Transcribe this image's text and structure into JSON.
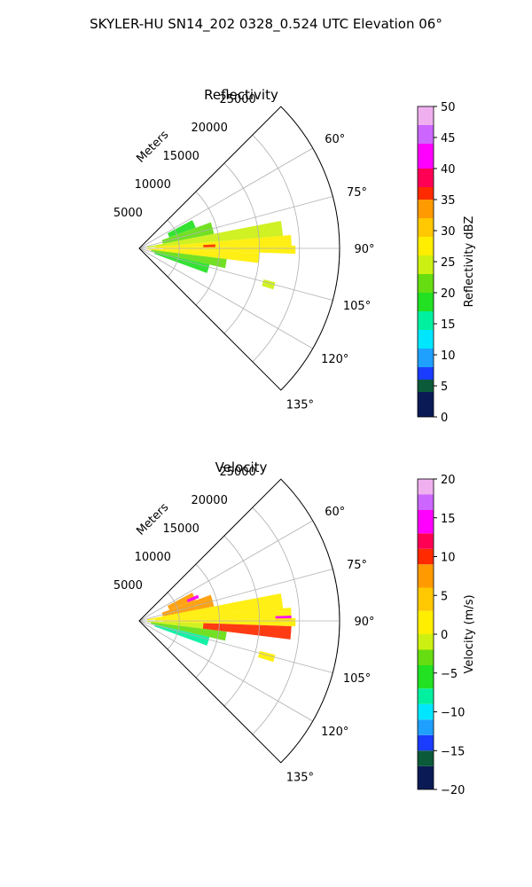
{
  "figure": {
    "title": "SKYLER-HU  SN14_202  0328_0.524 UTC Elevation 06°"
  },
  "chart_data": [
    {
      "type": "heatmap",
      "projection": "polar-sector",
      "title": "Reflectivity",
      "radial_axis_label": "Meters",
      "radial_range": [
        0,
        25000
      ],
      "radial_ticks": [
        "5000",
        "10000",
        "15000",
        "20000",
        "25000"
      ],
      "radial_tick_values": [
        5000,
        10000,
        15000,
        20000,
        25000
      ],
      "azimuth_range_deg": [
        45,
        135
      ],
      "azimuth_ticks": [
        "60°",
        "75°",
        "90°",
        "105°",
        "120°",
        "135°"
      ],
      "azimuth_tick_values": [
        60,
        75,
        90,
        105,
        120,
        135
      ],
      "grid": true,
      "colorbar": {
        "label": "Reflectivity dBZ",
        "range": [
          0,
          50
        ],
        "ticks": [
          "0",
          "5",
          "10",
          "15",
          "20",
          "25",
          "30",
          "35",
          "40",
          "45",
          "50"
        ],
        "tick_values": [
          0,
          5,
          10,
          15,
          20,
          25,
          30,
          35,
          40,
          45,
          50
        ],
        "colors": [
          [
            0,
            "#0a1a55"
          ],
          [
            4,
            "#0b5a3a"
          ],
          [
            6,
            "#1a3cff"
          ],
          [
            8,
            "#1fa0ff"
          ],
          [
            11,
            "#00e6ff"
          ],
          [
            14,
            "#00f0a0"
          ],
          [
            17,
            "#22e022"
          ],
          [
            20,
            "#66dd11"
          ],
          [
            23,
            "#ccf011"
          ],
          [
            26,
            "#ffee00"
          ],
          [
            29,
            "#ffc800"
          ],
          [
            32,
            "#ff9a00"
          ],
          [
            35,
            "#ff2a00"
          ],
          [
            37,
            "#ff0055"
          ],
          [
            40,
            "#ff00ff"
          ],
          [
            44,
            "#cc66ff"
          ],
          [
            47,
            "#f0b0f0"
          ],
          [
            50,
            "#fff0ff"
          ]
        ]
      },
      "echo_cells": [
        {
          "az": [
            62,
            70
          ],
          "range": [
            4000,
            7500
          ],
          "value": 18
        },
        {
          "az": [
            70,
            79
          ],
          "range": [
            3000,
            9500
          ],
          "value": 20
        },
        {
          "az": [
            79,
            85
          ],
          "range": [
            1000,
            18000
          ],
          "value": 24
        },
        {
          "az": [
            85,
            89
          ],
          "range": [
            2000,
            19000
          ],
          "value": 28
        },
        {
          "az": [
            89,
            92
          ],
          "range": [
            3000,
            19500
          ],
          "value": 27
        },
        {
          "az": [
            92,
            97
          ],
          "range": [
            1000,
            15000
          ],
          "value": 26
        },
        {
          "az": [
            97,
            103
          ],
          "range": [
            1500,
            11000
          ],
          "value": 21
        },
        {
          "az": [
            103,
            110
          ],
          "range": [
            2000,
            9000
          ],
          "value": 17
        },
        {
          "az": [
            87,
            89
          ],
          "range": [
            8000,
            9500
          ],
          "value": 36
        },
        {
          "az": [
            104,
            107
          ],
          "range": [
            16000,
            17500
          ],
          "value": 24
        }
      ]
    },
    {
      "type": "heatmap",
      "projection": "polar-sector",
      "title": "Velocity",
      "radial_axis_label": "Meters",
      "radial_range": [
        0,
        25000
      ],
      "radial_ticks": [
        "5000",
        "10000",
        "15000",
        "20000",
        "25000"
      ],
      "radial_tick_values": [
        5000,
        10000,
        15000,
        20000,
        25000
      ],
      "azimuth_range_deg": [
        45,
        135
      ],
      "azimuth_ticks": [
        "60°",
        "75°",
        "90°",
        "105°",
        "120°",
        "135°"
      ],
      "azimuth_tick_values": [
        60,
        75,
        90,
        105,
        120,
        135
      ],
      "grid": true,
      "colorbar": {
        "label": "Velocity (m/s)",
        "range": [
          -20,
          20
        ],
        "ticks": [
          "−20",
          "−15",
          "−10",
          "−5",
          "0",
          "5",
          "10",
          "15",
          "20"
        ],
        "tick_values": [
          -20,
          -15,
          -10,
          -5,
          0,
          5,
          10,
          15,
          20
        ],
        "colors": [
          [
            -20,
            "#0a1a55"
          ],
          [
            -17,
            "#0b5a3a"
          ],
          [
            -15,
            "#1a3cff"
          ],
          [
            -13,
            "#1fa0ff"
          ],
          [
            -11,
            "#00e6ff"
          ],
          [
            -9,
            "#00f0a0"
          ],
          [
            -7,
            "#22e022"
          ],
          [
            -4,
            "#66dd11"
          ],
          [
            -2,
            "#ccf011"
          ],
          [
            0,
            "#ffee00"
          ],
          [
            3,
            "#ffc800"
          ],
          [
            6,
            "#ff9a00"
          ],
          [
            9,
            "#ff2a00"
          ],
          [
            11,
            "#ff0055"
          ],
          [
            13,
            "#ff00ff"
          ],
          [
            16,
            "#cc66ff"
          ],
          [
            18,
            "#f0b0f0"
          ],
          [
            20,
            "#fff0ff"
          ]
        ]
      },
      "echo_cells": [
        {
          "az": [
            62,
            70
          ],
          "range": [
            4000,
            7500
          ],
          "value": 8
        },
        {
          "az": [
            66,
            69
          ],
          "range": [
            6500,
            8000
          ],
          "value": 13
        },
        {
          "az": [
            70,
            79
          ],
          "range": [
            3000,
            9500
          ],
          "value": 6
        },
        {
          "az": [
            79,
            85
          ],
          "range": [
            1000,
            18000
          ],
          "value": 2
        },
        {
          "az": [
            85,
            89
          ],
          "range": [
            2000,
            19000
          ],
          "value": 1
        },
        {
          "az": [
            88,
            90
          ],
          "range": [
            17000,
            19000
          ],
          "value": 14
        },
        {
          "az": [
            89,
            92
          ],
          "range": [
            3000,
            19500
          ],
          "value": 0
        },
        {
          "az": [
            92,
            97
          ],
          "range": [
            8000,
            19000
          ],
          "value": 9
        },
        {
          "az": [
            92,
            97
          ],
          "range": [
            1000,
            8000
          ],
          "value": -2
        },
        {
          "az": [
            97,
            103
          ],
          "range": [
            1500,
            11000
          ],
          "value": -4
        },
        {
          "az": [
            103,
            110
          ],
          "range": [
            2000,
            9000
          ],
          "value": -8
        },
        {
          "az": [
            104,
            107
          ],
          "range": [
            15500,
            17500
          ],
          "value": 2
        }
      ]
    }
  ]
}
